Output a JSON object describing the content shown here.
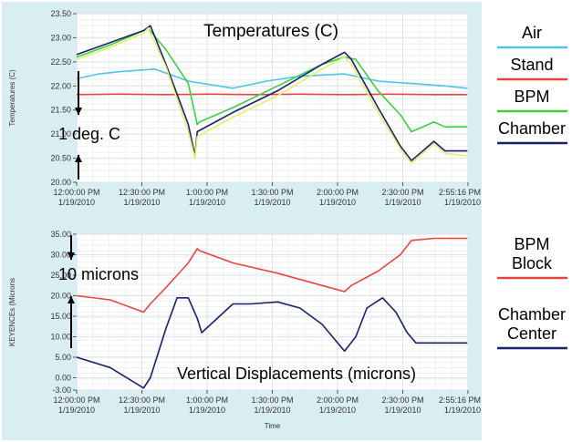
{
  "chart_data": [
    {
      "type": "line",
      "title": "Temperatures (C)",
      "ylabel": "Temperatures (C)",
      "xlabel": "",
      "ylim": [
        20.0,
        23.5
      ],
      "yticks": [
        "23.50",
        "23.00",
        "22.50",
        "22.00",
        "21.50",
        "21.00",
        "20.50",
        "20.00"
      ],
      "xticks": [
        [
          "12:00:00 PM",
          "1/19/2010"
        ],
        [
          "12:30:00 PM",
          "1/19/2010"
        ],
        [
          "1:00:00 PM",
          "1/19/2010"
        ],
        [
          "1:30:00 PM",
          "1/19/2010"
        ],
        [
          "2:00:00 PM",
          "1/19/2010"
        ],
        [
          "2:30:00 PM",
          "1/19/2010"
        ],
        [
          "2:55:16 PM",
          "1/19/2010"
        ]
      ],
      "xlim": [
        0,
        175.27
      ],
      "grid": true,
      "annotation": "1 deg. C",
      "series": [
        {
          "name": "Air",
          "color": "#4fc3e8",
          "x": [
            0,
            10,
            20,
            35,
            50,
            70,
            85,
            100,
            120,
            135,
            150,
            165,
            175
          ],
          "y": [
            22.15,
            22.25,
            22.3,
            22.35,
            22.1,
            21.95,
            22.1,
            22.2,
            22.25,
            22.1,
            22.05,
            22.0,
            21.95
          ]
        },
        {
          "name": "Stand",
          "color": "#e8453c",
          "x": [
            0,
            20,
            40,
            60,
            80,
            100,
            120,
            140,
            160,
            175
          ],
          "y": [
            21.82,
            21.83,
            21.82,
            21.83,
            21.82,
            21.83,
            21.82,
            21.83,
            21.82,
            21.82
          ]
        },
        {
          "name": "BPM",
          "color": "#3ecf3e",
          "x": [
            0,
            15,
            30,
            32,
            40,
            50,
            54,
            55,
            70,
            90,
            110,
            120,
            125,
            135,
            145,
            150,
            160,
            165,
            175
          ],
          "y": [
            22.6,
            22.85,
            23.15,
            23.2,
            22.75,
            22.05,
            21.2,
            21.25,
            21.55,
            22.0,
            22.45,
            22.6,
            22.55,
            21.9,
            21.4,
            21.05,
            21.25,
            21.15,
            21.15
          ]
        },
        {
          "name": "Chamber",
          "color": "#1a1f6e",
          "x": [
            0,
            15,
            30,
            33,
            40,
            50,
            53,
            54,
            70,
            90,
            110,
            120,
            123,
            135,
            145,
            150,
            160,
            165,
            175
          ],
          "y": [
            22.65,
            22.9,
            23.15,
            23.25,
            22.45,
            21.2,
            20.55,
            21.05,
            21.45,
            21.9,
            22.45,
            22.7,
            22.55,
            21.55,
            20.75,
            20.45,
            20.85,
            20.65,
            20.65
          ]
        },
        {
          "name": "",
          "color": "#e4ef6a",
          "x": [
            0,
            15,
            30,
            32,
            40,
            50,
            53,
            54,
            70,
            90,
            110,
            120,
            123,
            135,
            145,
            150,
            160,
            165,
            175
          ],
          "y": [
            22.55,
            22.8,
            23.1,
            23.2,
            22.4,
            21.05,
            20.5,
            20.95,
            21.35,
            21.8,
            22.35,
            22.6,
            22.45,
            21.45,
            20.7,
            20.4,
            20.8,
            20.6,
            20.55
          ]
        }
      ]
    },
    {
      "type": "line",
      "title": "Vertical Displacements (microns)",
      "ylabel": "KEYENCEs (Microns",
      "xlabel": "Time",
      "ylim": [
        -3.0,
        35.0
      ],
      "yticks": [
        "35.00",
        "30.00",
        "25.00",
        "20.00",
        "15.00",
        "10.00",
        "5.00",
        "0.00",
        "-3.00"
      ],
      "ytick_values": [
        35,
        30,
        25,
        20,
        15,
        10,
        5,
        0,
        -3
      ],
      "xticks": [
        [
          "12:00:00 PM",
          "1/19/2010"
        ],
        [
          "12:30:00 PM",
          "1/19/2010"
        ],
        [
          "1:00:00 PM",
          "1/19/2010"
        ],
        [
          "1:30:00 PM",
          "1/19/2010"
        ],
        [
          "2:00:00 PM",
          "1/19/2010"
        ],
        [
          "2:30:00 PM",
          "1/19/2010"
        ],
        [
          "2:55:16 PM",
          "1/19/2010"
        ]
      ],
      "xlim": [
        0,
        175.27
      ],
      "grid": true,
      "annotation": "10 microns",
      "series": [
        {
          "name": "BPM Block",
          "color": "#e8453c",
          "x": [
            0,
            15,
            30,
            33,
            40,
            50,
            54,
            55,
            70,
            90,
            110,
            120,
            123,
            135,
            145,
            150,
            160,
            165,
            175
          ],
          "y": [
            20,
            19,
            16,
            18,
            22,
            28,
            31.5,
            31,
            28,
            25.5,
            22.5,
            21,
            22.5,
            26,
            30,
            33.5,
            34,
            34,
            34
          ]
        },
        {
          "name": "Chamber Center",
          "color": "#1a1f6e",
          "x": [
            0,
            15,
            30,
            33,
            40,
            45,
            50,
            54,
            56,
            60,
            70,
            78,
            90,
            100,
            110,
            120,
            125,
            130,
            137,
            143,
            148,
            152,
            160,
            175
          ],
          "y": [
            5,
            2.5,
            -2.5,
            0,
            12,
            19.5,
            19.5,
            14.5,
            11,
            13,
            18,
            18,
            18.5,
            17,
            13,
            6.5,
            10,
            17,
            19.5,
            16,
            11,
            8.5,
            8.5,
            8.5
          ]
        }
      ]
    }
  ],
  "legend": {
    "top": [
      {
        "label": "Air",
        "color": "#4fc3e8"
      },
      {
        "label": "Stand",
        "color": "#e8453c"
      },
      {
        "label": "BPM",
        "color": "#3ecf3e"
      },
      {
        "label": "Chamber",
        "color": "#1a1f6e"
      }
    ],
    "bottom": [
      {
        "label": "BPM\nBlock",
        "color": "#e8453c"
      },
      {
        "label": "Chamber\nCenter",
        "color": "#1a1f6e"
      }
    ]
  }
}
